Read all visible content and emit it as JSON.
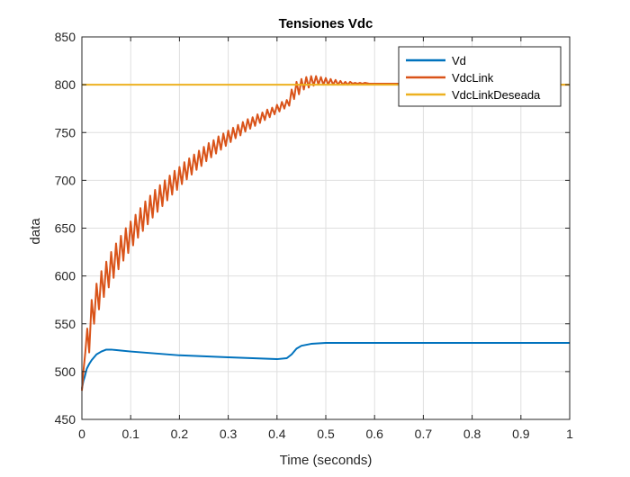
{
  "chart_data": {
    "type": "line",
    "title": "Tensiones Vdc",
    "xlabel": "Time (seconds)",
    "ylabel": "data",
    "xlim": [
      0,
      1
    ],
    "ylim": [
      450,
      850
    ],
    "xticks": [
      0,
      0.1,
      0.2,
      0.3,
      0.4,
      0.5,
      0.6,
      0.7,
      0.8,
      0.9,
      1
    ],
    "xtick_labels": [
      "0",
      "0.1",
      "0.2",
      "0.3",
      "0.4",
      "0.5",
      "0.6",
      "0.7",
      "0.8",
      "0.9",
      "1"
    ],
    "yticks": [
      450,
      500,
      550,
      600,
      650,
      700,
      750,
      800,
      850
    ],
    "ytick_labels": [
      "450",
      "500",
      "550",
      "600",
      "650",
      "700",
      "750",
      "800",
      "850"
    ],
    "grid": true,
    "legend_position": "top-right",
    "series": [
      {
        "name": "Vd",
        "color": "#0072BD",
        "x": [
          0,
          0.003,
          0.006,
          0.01,
          0.015,
          0.02,
          0.03,
          0.04,
          0.05,
          0.06,
          0.08,
          0.1,
          0.15,
          0.2,
          0.25,
          0.3,
          0.35,
          0.4,
          0.42,
          0.43,
          0.44,
          0.45,
          0.47,
          0.5,
          0.6,
          0.7,
          0.8,
          0.9,
          1.0
        ],
        "y": [
          482,
          490,
          495,
          503,
          508,
          512,
          518,
          521,
          523,
          523,
          522,
          521,
          519,
          517,
          516,
          515,
          514,
          513,
          514,
          518,
          524,
          527,
          529,
          530,
          530,
          530,
          530,
          530,
          530
        ]
      },
      {
        "name": "VdcLink",
        "color": "#D95319",
        "x": [
          0,
          0.003,
          0.007,
          0.011,
          0.015,
          0.02,
          0.025,
          0.03,
          0.035,
          0.04,
          0.045,
          0.05,
          0.055,
          0.06,
          0.065,
          0.07,
          0.075,
          0.08,
          0.085,
          0.09,
          0.095,
          0.1,
          0.105,
          0.11,
          0.115,
          0.12,
          0.125,
          0.13,
          0.135,
          0.14,
          0.145,
          0.15,
          0.155,
          0.16,
          0.165,
          0.17,
          0.175,
          0.18,
          0.185,
          0.19,
          0.195,
          0.2,
          0.205,
          0.21,
          0.215,
          0.22,
          0.225,
          0.23,
          0.235,
          0.24,
          0.245,
          0.25,
          0.255,
          0.26,
          0.265,
          0.27,
          0.275,
          0.28,
          0.285,
          0.29,
          0.295,
          0.3,
          0.305,
          0.31,
          0.315,
          0.32,
          0.325,
          0.33,
          0.335,
          0.34,
          0.345,
          0.35,
          0.355,
          0.36,
          0.365,
          0.37,
          0.375,
          0.38,
          0.385,
          0.39,
          0.395,
          0.4,
          0.405,
          0.41,
          0.415,
          0.42,
          0.425,
          0.43,
          0.435,
          0.44,
          0.445,
          0.45,
          0.455,
          0.46,
          0.465,
          0.47,
          0.475,
          0.48,
          0.485,
          0.49,
          0.495,
          0.5,
          0.505,
          0.51,
          0.515,
          0.52,
          0.525,
          0.53,
          0.535,
          0.54,
          0.545,
          0.55,
          0.555,
          0.56,
          0.565,
          0.57,
          0.575,
          0.58,
          0.59,
          0.6,
          0.61,
          0.62,
          0.63,
          0.64,
          0.65,
          0.66,
          0.68,
          0.7,
          0.75,
          0.8,
          0.85,
          0.9,
          0.95,
          1.0
        ],
        "y": [
          480,
          500,
          520,
          545,
          520,
          575,
          550,
          592,
          565,
          605,
          578,
          615,
          588,
          625,
          598,
          634,
          607,
          642,
          616,
          650,
          624,
          657,
          632,
          664,
          640,
          671,
          647,
          678,
          654,
          684,
          661,
          690,
          667,
          695,
          673,
          700,
          679,
          705,
          685,
          710,
          690,
          714,
          696,
          719,
          701,
          723,
          706,
          727,
          711,
          731,
          715,
          735,
          720,
          739,
          724,
          742,
          728,
          746,
          732,
          749,
          736,
          752,
          740,
          755,
          744,
          758,
          747,
          761,
          751,
          764,
          754,
          766,
          757,
          769,
          760,
          771,
          763,
          774,
          766,
          776,
          769,
          779,
          772,
          782,
          775,
          784,
          778,
          795,
          785,
          803,
          790,
          806,
          795,
          808,
          797,
          809,
          799,
          809,
          800,
          808,
          800,
          807,
          800,
          806,
          800,
          805,
          800,
          804,
          800,
          803,
          800,
          803,
          801,
          802,
          801,
          802,
          801,
          802,
          801,
          801,
          801,
          801,
          801,
          801,
          801,
          801,
          801,
          800,
          800,
          800,
          800,
          800,
          800,
          800
        ]
      },
      {
        "name": "VdcLinkDeseada",
        "color": "#EDB120",
        "x": [
          0,
          1
        ],
        "y": [
          800,
          800
        ]
      }
    ]
  }
}
